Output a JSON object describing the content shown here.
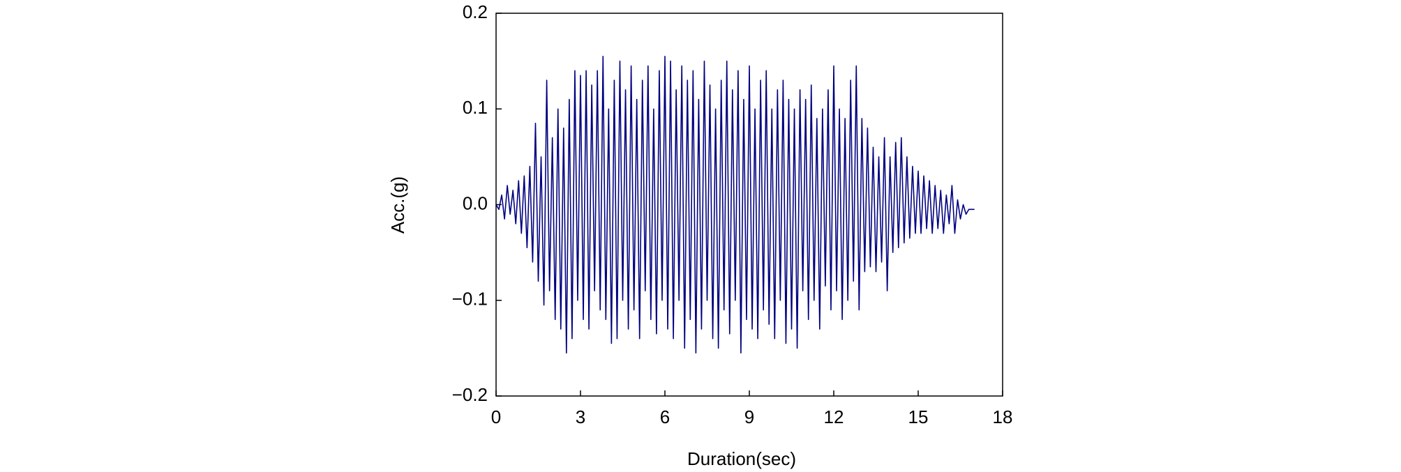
{
  "chart_data": {
    "type": "line",
    "xlabel": "Duration(sec)",
    "ylabel": "Acc.(g)",
    "xlim": [
      0,
      18
    ],
    "xticks": [
      0,
      3,
      6,
      9,
      12,
      15,
      18
    ],
    "ylim": [
      -0.2,
      0.2
    ],
    "yticks": [
      {
        "value": -0.2,
        "label": "−0.2"
      },
      {
        "value": -0.1,
        "label": "−0.1"
      },
      {
        "value": 0,
        "label": "0.0"
      },
      0.1,
      0.2
    ],
    "x": [
      0,
      0.1,
      0.2,
      0.3,
      0.4,
      0.5,
      0.6,
      0.7,
      0.8,
      0.9,
      1,
      1.1,
      1.2,
      1.3,
      1.4,
      1.5,
      1.6,
      1.7,
      1.8,
      1.9,
      2,
      2.1,
      2.2,
      2.3,
      2.4,
      2.5,
      2.6,
      2.7,
      2.8,
      2.9,
      3,
      3.1,
      3.2,
      3.3,
      3.4,
      3.5,
      3.6,
      3.7,
      3.8,
      3.9,
      4,
      4.1,
      4.2,
      4.3,
      4.4,
      4.5,
      4.6,
      4.7,
      4.8,
      4.9,
      5,
      5.1,
      5.2,
      5.3,
      5.4,
      5.5,
      5.6,
      5.7,
      5.8,
      5.9,
      6,
      6.1,
      6.2,
      6.3,
      6.4,
      6.5,
      6.6,
      6.7,
      6.8,
      6.9,
      7,
      7.1,
      7.2,
      7.3,
      7.4,
      7.5,
      7.6,
      7.7,
      7.8,
      7.9,
      8,
      8.1,
      8.2,
      8.3,
      8.4,
      8.5,
      8.6,
      8.7,
      8.8,
      8.9,
      9,
      9.1,
      9.2,
      9.3,
      9.4,
      9.5,
      9.6,
      9.7,
      9.8,
      9.9,
      10,
      10.1,
      10.2,
      10.3,
      10.4,
      10.5,
      10.6,
      10.7,
      10.8,
      10.9,
      11,
      11.1,
      11.2,
      11.3,
      11.4,
      11.5,
      11.6,
      11.7,
      11.8,
      11.9,
      12,
      12.1,
      12.2,
      12.3,
      12.4,
      12.5,
      12.6,
      12.7,
      12.8,
      12.9,
      13,
      13.1,
      13.2,
      13.3,
      13.4,
      13.5,
      13.6,
      13.7,
      13.8,
      13.9,
      14,
      14.1,
      14.2,
      14.3,
      14.4,
      14.5,
      14.6,
      14.7,
      14.8,
      14.9,
      15,
      15.1,
      15.2,
      15.3,
      15.4,
      15.5,
      15.6,
      15.7,
      15.8,
      15.9,
      16,
      16.1,
      16.2,
      16.3,
      16.4,
      16.5,
      16.6,
      16.7,
      16.8,
      16.9,
      17
    ],
    "series": [
      {
        "color": "#000080",
        "values": [
          0,
          -0.005,
          0.01,
          -0.015,
          0.02,
          -0.01,
          0.015,
          -0.02,
          0.025,
          -0.03,
          0.03,
          -0.045,
          0.04,
          -0.06,
          0.085,
          -0.08,
          0.05,
          -0.105,
          0.13,
          -0.09,
          0.07,
          -0.12,
          0.1,
          -0.13,
          0.08,
          -0.155,
          0.11,
          -0.14,
          0.14,
          -0.1,
          0.135,
          -0.12,
          0.14,
          -0.13,
          0.125,
          -0.09,
          0.14,
          -0.11,
          0.155,
          -0.12,
          0.1,
          -0.145,
          0.13,
          -0.14,
          0.15,
          -0.1,
          0.12,
          -0.13,
          0.145,
          -0.11,
          0.11,
          -0.14,
          0.13,
          -0.09,
          0.145,
          -0.12,
          0.1,
          -0.135,
          0.14,
          -0.1,
          0.155,
          -0.13,
          0.15,
          -0.14,
          0.12,
          -0.1,
          0.145,
          -0.15,
          0.13,
          -0.12,
          0.14,
          -0.155,
          0.11,
          -0.13,
          0.15,
          -0.1,
          0.125,
          -0.14,
          0.1,
          -0.15,
          0.13,
          -0.11,
          0.15,
          -0.135,
          0.12,
          -0.1,
          0.14,
          -0.155,
          0.11,
          -0.12,
          0.145,
          -0.13,
          0.1,
          -0.14,
          0.13,
          -0.11,
          0.14,
          -0.125,
          0.1,
          -0.14,
          0.12,
          -0.1,
          0.13,
          -0.145,
          0.11,
          -0.13,
          0.1,
          -0.15,
          0.12,
          -0.09,
          0.11,
          -0.12,
          0.125,
          -0.1,
          0.09,
          -0.13,
          0.1,
          -0.085,
          0.12,
          -0.11,
          0.145,
          -0.09,
          0.1,
          -0.12,
          0.09,
          -0.1,
          0.13,
          -0.08,
          0.145,
          -0.11,
          0.09,
          -0.07,
          0.08,
          -0.065,
          0.06,
          -0.07,
          0.05,
          -0.06,
          0.07,
          -0.09,
          0.05,
          -0.05,
          0.065,
          -0.045,
          0.07,
          -0.04,
          0.05,
          -0.035,
          0.04,
          -0.03,
          0.035,
          -0.03,
          0.03,
          -0.025,
          0.025,
          -0.03,
          0.02,
          -0.025,
          0.015,
          -0.03,
          0.01,
          -0.02,
          0.02,
          -0.03,
          0.005,
          -0.015,
          0,
          -0.01,
          -0.005,
          -0.005,
          -0.005
        ]
      }
    ]
  }
}
